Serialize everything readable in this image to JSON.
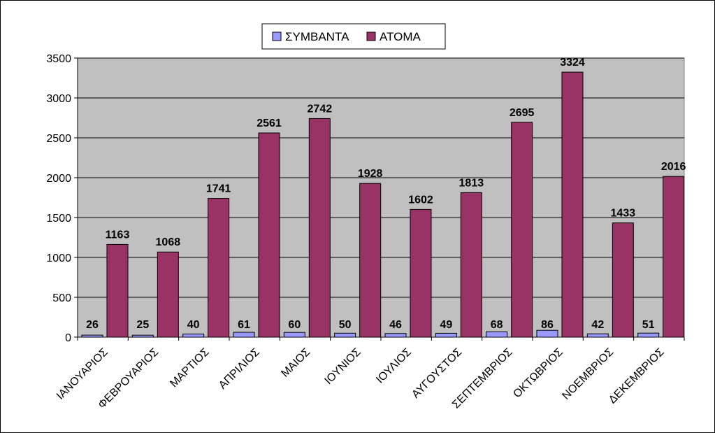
{
  "chart_data": {
    "type": "bar",
    "categories": [
      "ΙΑΝΟΥΑΡΙΟΣ",
      "ΦΕΒΡΟΥΑΡΙΟΣ",
      "ΜΑΡΤΙΟΣ",
      "ΑΠΡΙΛΙΟΣ",
      "ΜΑΙΟΣ",
      "ΙΟΥΝΙΟΣ",
      "ΙΟΥΛΙΟΣ",
      "ΑΥΓΟΥΣΤΟΣ",
      "ΣΕΠΤΕΜΒΡΙΟΣ",
      "ΟΚΤΩΒΡΙΟΣ",
      "ΝΟΕΜΒΡΙΟΣ",
      "ΔΕΚΕΜΒΡΙΟΣ"
    ],
    "series": [
      {
        "name": "ΣΥΜΒΑΝΤΑ",
        "color": "#9999ff",
        "values": [
          26,
          25,
          40,
          61,
          60,
          50,
          46,
          49,
          68,
          86,
          42,
          51
        ]
      },
      {
        "name": "ΑΤΟΜΑ",
        "color": "#993366",
        "values": [
          1163,
          1068,
          1741,
          2561,
          2742,
          1928,
          1602,
          1813,
          2695,
          3324,
          1433,
          2016
        ]
      }
    ],
    "ylim": [
      0,
      3500
    ],
    "yticks": [
      0,
      500,
      1000,
      1500,
      2000,
      2500,
      3000,
      3500
    ],
    "grid": true,
    "plot_background": "#c0c0c0",
    "legend_position": "top"
  }
}
